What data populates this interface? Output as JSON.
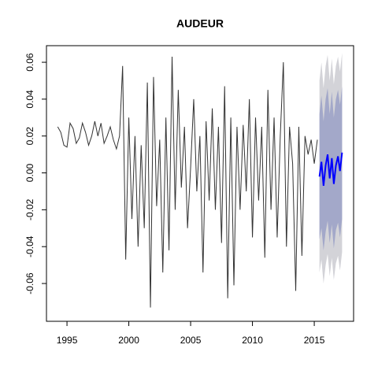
{
  "chart_data": {
    "type": "forecast",
    "title": "AUDEUR",
    "history": {
      "color": "#333333",
      "x": [
        1994.25,
        1994.5,
        1994.75,
        1995,
        1995.25,
        1995.5,
        1995.75,
        1996,
        1996.25,
        1996.5,
        1996.75,
        1997,
        1997.25,
        1997.5,
        1997.75,
        1998,
        1998.25,
        1998.5,
        1998.75,
        1999,
        1999.25,
        1999.5,
        1999.75,
        2000,
        2000.25,
        2000.5,
        2000.75,
        2001,
        2001.25,
        2001.5,
        2001.75,
        2002,
        2002.25,
        2002.5,
        2002.75,
        2003,
        2003.25,
        2003.5,
        2003.75,
        2004,
        2004.25,
        2004.5,
        2004.75,
        2005,
        2005.25,
        2005.5,
        2005.75,
        2006,
        2006.25,
        2006.5,
        2006.75,
        2007,
        2007.25,
        2007.5,
        2007.75,
        2008,
        2008.25,
        2008.5,
        2008.75,
        2009,
        2009.25,
        2009.5,
        2009.75,
        2010,
        2010.25,
        2010.5,
        2010.75,
        2011,
        2011.25,
        2011.5,
        2011.75,
        2012,
        2012.25,
        2012.5,
        2012.75,
        2013,
        2013.25,
        2013.5,
        2013.75,
        2014,
        2014.25,
        2014.5,
        2014.75,
        2015,
        2015.25
      ],
      "values": [
        0.025,
        0.022,
        0.015,
        0.014,
        0.027,
        0.024,
        0.016,
        0.019,
        0.027,
        0.022,
        0.015,
        0.02,
        0.028,
        0.02,
        0.027,
        0.016,
        0.02,
        0.025,
        0.018,
        0.013,
        0.02,
        0.058,
        -0.047,
        0.03,
        -0.025,
        0.02,
        -0.04,
        0.015,
        -0.03,
        0.049,
        -0.073,
        0.052,
        -0.018,
        0.018,
        -0.054,
        0.03,
        -0.042,
        0.063,
        -0.02,
        0.045,
        -0.008,
        0.025,
        -0.03,
        0.003,
        0.04,
        -0.01,
        0.02,
        -0.054,
        0.028,
        -0.015,
        0.035,
        -0.02,
        0.025,
        -0.038,
        0.047,
        -0.068,
        0.03,
        -0.061,
        0.025,
        -0.02,
        0.026,
        -0.01,
        0.04,
        -0.035,
        0.03,
        -0.015,
        0.025,
        -0.046,
        0.045,
        -0.02,
        0.03,
        -0.035,
        0.02,
        0.06,
        -0.04,
        0.025,
        0.005,
        -0.064,
        0.025,
        -0.045,
        0.02,
        0.01,
        0.018,
        0.005,
        0.018
      ]
    },
    "forecast": {
      "color": "#0000ff",
      "color80": "#a3a8c9",
      "color95": "#d3d3d8",
      "x": [
        2015.42,
        2015.58,
        2015.75,
        2015.92,
        2016.08,
        2016.25,
        2016.42,
        2016.58,
        2016.75,
        2016.92,
        2017.08,
        2017.25
      ],
      "values": [
        -0.002,
        0.006,
        -0.007,
        0.004,
        0.01,
        -0.003,
        0.008,
        -0.006,
        0.004,
        0.009,
        0.001,
        0.011
      ],
      "lo80": [
        -0.036,
        -0.03,
        -0.042,
        -0.032,
        -0.026,
        -0.038,
        -0.028,
        -0.041,
        -0.031,
        -0.027,
        -0.035,
        -0.025
      ],
      "hi80": [
        0.032,
        0.042,
        0.028,
        0.04,
        0.046,
        0.032,
        0.044,
        0.03,
        0.04,
        0.045,
        0.037,
        0.047
      ],
      "lo95": [
        -0.054,
        -0.047,
        -0.06,
        -0.05,
        -0.044,
        -0.056,
        -0.046,
        -0.058,
        -0.049,
        -0.045,
        -0.053,
        -0.043
      ],
      "hi95": [
        0.05,
        0.06,
        0.046,
        0.058,
        0.064,
        0.05,
        0.062,
        0.048,
        0.058,
        0.063,
        0.055,
        0.065
      ]
    },
    "xlim": [
      1993.34,
      2018.18
    ],
    "ylim": [
      -0.0805,
      0.069
    ],
    "xticks": [
      1995,
      2000,
      2005,
      2010,
      2015
    ],
    "yticks": [
      -0.06,
      -0.04,
      -0.02,
      {
        "value": 0,
        "label": "0.00"
      },
      0.02,
      0.04,
      0.06
    ]
  }
}
